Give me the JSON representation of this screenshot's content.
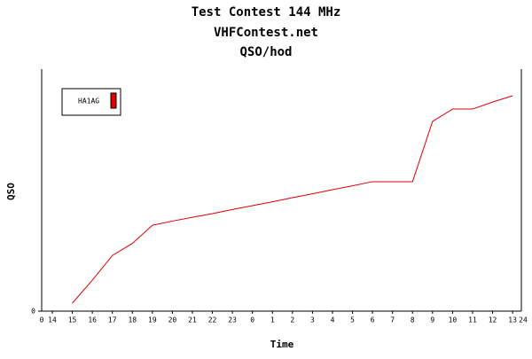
{
  "chart_data": {
    "type": "line",
    "title": "Test Contest 144 MHz",
    "subtitle": "VHFContest.net",
    "subtitle2": "QSO/hod",
    "x_label": "Time",
    "y_label": "QSO",
    "x_edge_labels": [
      "0",
      "24"
    ],
    "categories": [
      "14",
      "15",
      "16",
      "17",
      "18",
      "19",
      "20",
      "21",
      "22",
      "23",
      "0",
      "1",
      "2",
      "3",
      "4",
      "5",
      "6",
      "7",
      "8",
      "9",
      "10",
      "11",
      "12",
      "13"
    ],
    "series": [
      {
        "name": "HA1AG",
        "color": "#e00000",
        "values": [
          null,
          3.3,
          12.8,
          23,
          28,
          35.5,
          37.2,
          38.8,
          40.3,
          42,
          43.6,
          45.2,
          46.9,
          48.5,
          50.2,
          51.8,
          53.5,
          53.5,
          53.5,
          78.4,
          83.5,
          83.5,
          86.4,
          89
        ]
      }
    ],
    "ylim": [
      0,
      100
    ],
    "yticks": [
      0
    ],
    "legend": "upper-left"
  }
}
